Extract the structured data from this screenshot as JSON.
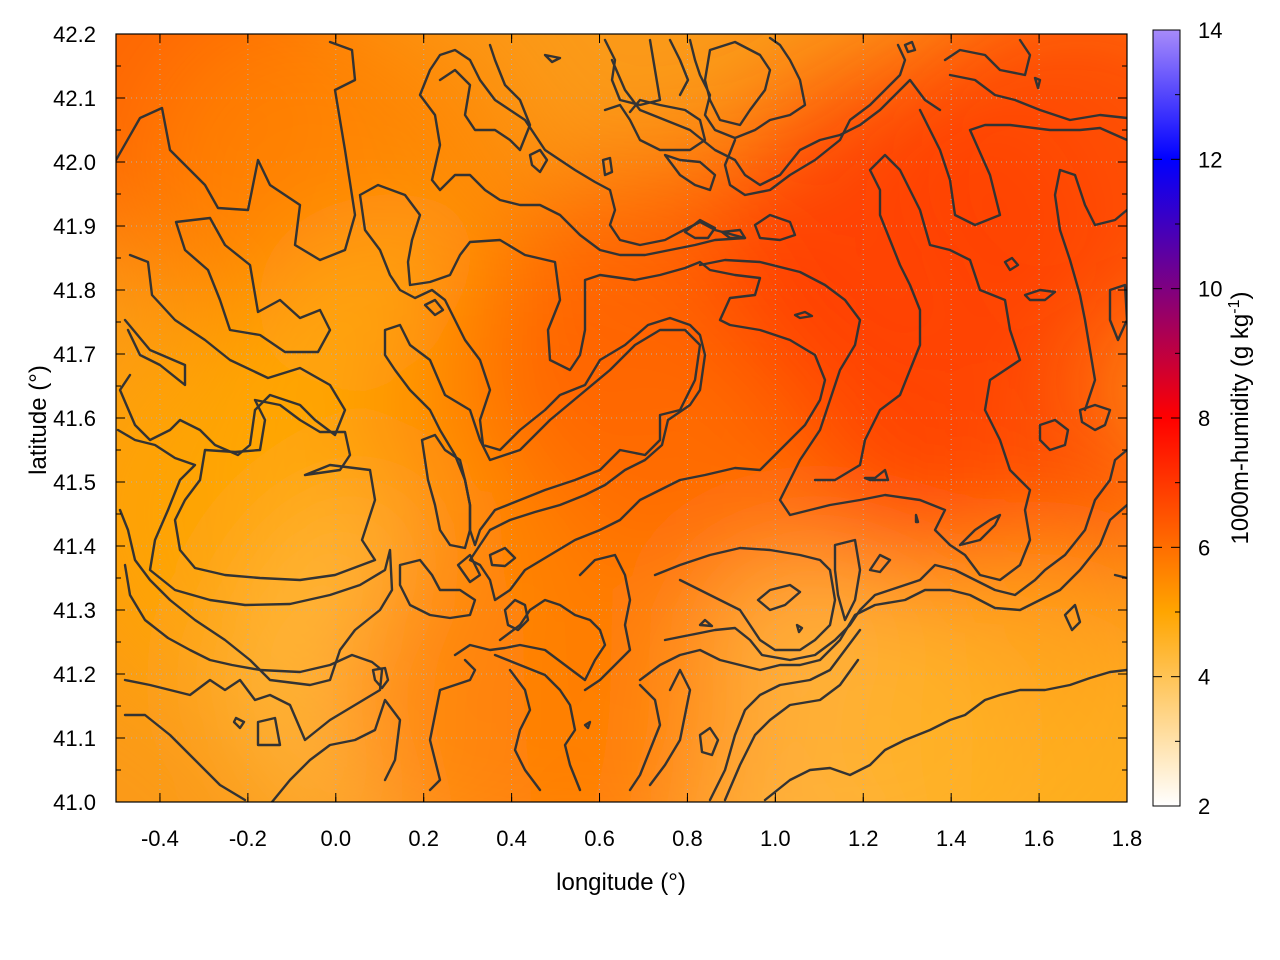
{
  "chart_data": {
    "type": "heatmap",
    "title": "",
    "xlabel": "longitude (°)",
    "ylabel": "latitude (°)",
    "colorbar_label": "1000m-humidity (g kg",
    "colorbar_label_sup": "-1",
    "colorbar_label_end": ")",
    "xlim": [
      -0.5,
      1.8
    ],
    "ylim": [
      41.0,
      42.2
    ],
    "clim": [
      2,
      14
    ],
    "x_ticks": [
      "-0.4",
      "-0.2",
      "0.0",
      "0.2",
      "0.4",
      "0.6",
      "0.8",
      "1.0",
      "1.2",
      "1.4",
      "1.6",
      "1.8"
    ],
    "x_tick_values": [
      -0.4,
      -0.2,
      0.0,
      0.2,
      0.4,
      0.6,
      0.8,
      1.0,
      1.2,
      1.4,
      1.6,
      1.8
    ],
    "y_ticks": [
      "41.0",
      "41.1",
      "41.2",
      "41.3",
      "41.4",
      "41.5",
      "41.6",
      "41.7",
      "41.8",
      "41.9",
      "42.0",
      "42.1",
      "42.2"
    ],
    "y_tick_values": [
      41.0,
      41.1,
      41.2,
      41.3,
      41.4,
      41.5,
      41.6,
      41.7,
      41.8,
      41.9,
      42.0,
      42.1,
      42.2
    ],
    "colorbar_ticks": [
      "2",
      "4",
      "6",
      "8",
      "10",
      "12",
      "14"
    ],
    "colorbar_tick_values": [
      2,
      4,
      6,
      8,
      10,
      12,
      14
    ],
    "colormap": [
      "#ffffff",
      "#ffa500",
      "#ff0000",
      "#0000ff",
      "#a78bfa"
    ],
    "colormap_stops": [
      2,
      5,
      8,
      12,
      14
    ],
    "grid": true,
    "contours": true,
    "field_samples": [
      {
        "lon": -0.4,
        "lat": 42.15,
        "value": 6.3
      },
      {
        "lon": 0.0,
        "lat": 41.95,
        "value": 5.6
      },
      {
        "lon": 0.2,
        "lat": 41.6,
        "value": 4.6
      },
      {
        "lon": -0.2,
        "lat": 41.45,
        "value": 5.0
      },
      {
        "lon": 0.2,
        "lat": 41.2,
        "value": 4.2
      },
      {
        "lon": 0.5,
        "lat": 41.6,
        "value": 5.5
      },
      {
        "lon": 0.75,
        "lat": 41.7,
        "value": 6.3
      },
      {
        "lon": 1.0,
        "lat": 41.45,
        "value": 6.0
      },
      {
        "lon": 1.3,
        "lat": 41.85,
        "value": 7.0
      },
      {
        "lon": 1.5,
        "lat": 41.4,
        "value": 6.8
      },
      {
        "lon": 1.7,
        "lat": 42.0,
        "value": 6.8
      },
      {
        "lon": 0.85,
        "lat": 41.15,
        "value": 6.2
      },
      {
        "lon": 1.1,
        "lat": 41.1,
        "value": 4.2
      },
      {
        "lon": 1.6,
        "lat": 41.1,
        "value": 4.6
      },
      {
        "lon": 0.45,
        "lat": 41.15,
        "value": 5.7
      }
    ]
  }
}
